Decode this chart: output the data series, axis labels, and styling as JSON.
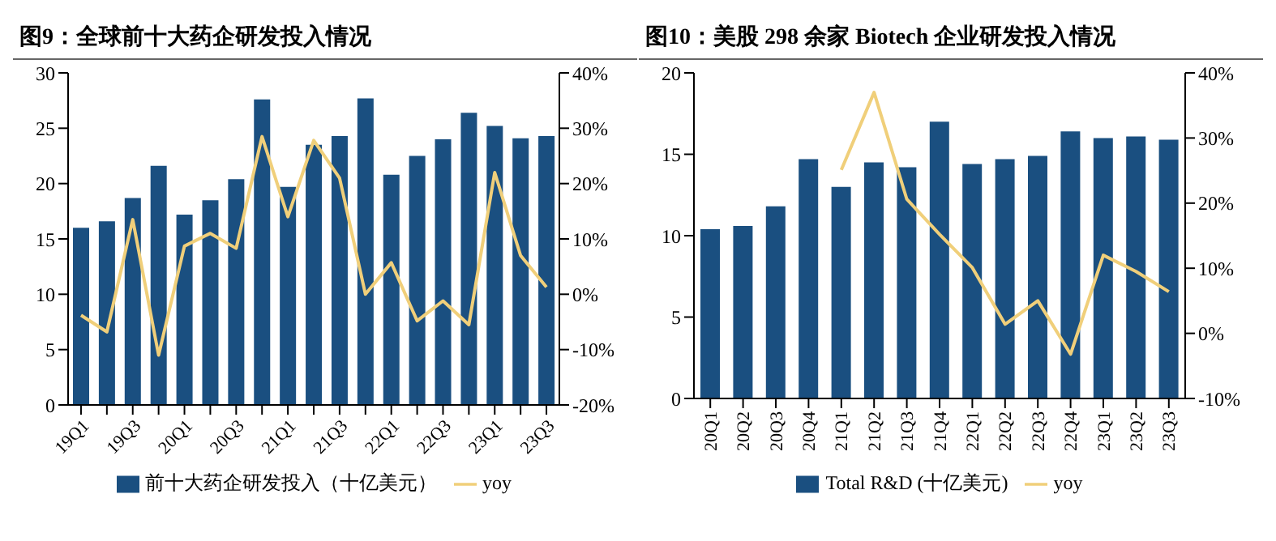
{
  "chart_data": [
    {
      "type": "bar",
      "title": "图9：全球前十大药企研发投入情况",
      "categories": [
        "19Q1",
        null,
        "19Q3",
        null,
        "20Q1",
        null,
        "20Q3",
        null,
        "21Q1",
        null,
        "21Q3",
        null,
        "22Q1",
        null,
        "22Q3",
        null,
        "23Q1",
        null,
        "23Q3"
      ],
      "series": [
        {
          "name": "前十大药企研发投入（十亿美元）",
          "color": "#1a4f80",
          "values": [
            16.0,
            16.6,
            18.7,
            21.6,
            17.2,
            18.5,
            20.4,
            27.6,
            19.7,
            23.5,
            24.3,
            27.7,
            20.8,
            22.5,
            24.0,
            26.4,
            25.2,
            24.1,
            24.3
          ]
        },
        {
          "name": "yoy",
          "type": "line",
          "axis": "y2",
          "color": "#f0cf7a",
          "values": [
            -3.8,
            -6.8,
            13.5,
            -11,
            8.7,
            11,
            8.3,
            28.5,
            14,
            27.8,
            21,
            0,
            5.7,
            -4.8,
            -1.2,
            -5.5,
            22,
            7,
            1.3
          ]
        }
      ],
      "ylim": [
        0,
        30
      ],
      "yticks": [
        0,
        5,
        10,
        15,
        20,
        25,
        30
      ],
      "y2lim": [
        -20,
        40
      ],
      "y2ticks": [
        {
          "value": -20,
          "label": "-20%"
        },
        {
          "value": -10,
          "label": "-10%"
        },
        {
          "value": 0,
          "label": "0%"
        },
        {
          "value": 10,
          "label": "10%"
        },
        {
          "value": 20,
          "label": "20%"
        },
        {
          "value": 30,
          "label": "30%"
        },
        {
          "value": 40,
          "label": "40%"
        }
      ],
      "legend": "bottom",
      "grid": false,
      "marker": "none"
    },
    {
      "type": "bar",
      "title": "图10：美股 298 余家 Biotech 企业研发投入情况",
      "categories": [
        "20Q1",
        "20Q2",
        "20Q3",
        "20Q4",
        "21Q1",
        "21Q2",
        "21Q3",
        "21Q4",
        "22Q1",
        "22Q2",
        "22Q3",
        "22Q4",
        "23Q1",
        "23Q2",
        "23Q3"
      ],
      "series": [
        {
          "name": "Total R&D (十亿美元)",
          "color": "#1a4f80",
          "values": [
            10.4,
            10.6,
            11.8,
            14.7,
            13.0,
            14.5,
            14.2,
            17.0,
            14.4,
            14.7,
            14.9,
            16.4,
            16.0,
            16.1,
            15.9
          ]
        },
        {
          "name": "yoy",
          "type": "line",
          "axis": "y2",
          "color": "#f0cf7a",
          "values": [
            null,
            null,
            null,
            null,
            25.1,
            37,
            20.6,
            15.2,
            10.1,
            1.4,
            5,
            -3.2,
            12,
            9.5,
            6.4
          ]
        }
      ],
      "ylim": [
        0,
        20
      ],
      "yticks": [
        0,
        5,
        10,
        15,
        20
      ],
      "y2lim": [
        -10,
        40
      ],
      "y2ticks": [
        {
          "value": -10,
          "label": "-10%"
        },
        {
          "value": 0,
          "label": "0%"
        },
        {
          "value": 10,
          "label": "10%"
        },
        {
          "value": 20,
          "label": "20%"
        },
        {
          "value": 30,
          "label": "30%"
        },
        {
          "value": 40,
          "label": "40%"
        }
      ],
      "legend": "bottom",
      "grid": false,
      "marker": "none"
    }
  ]
}
